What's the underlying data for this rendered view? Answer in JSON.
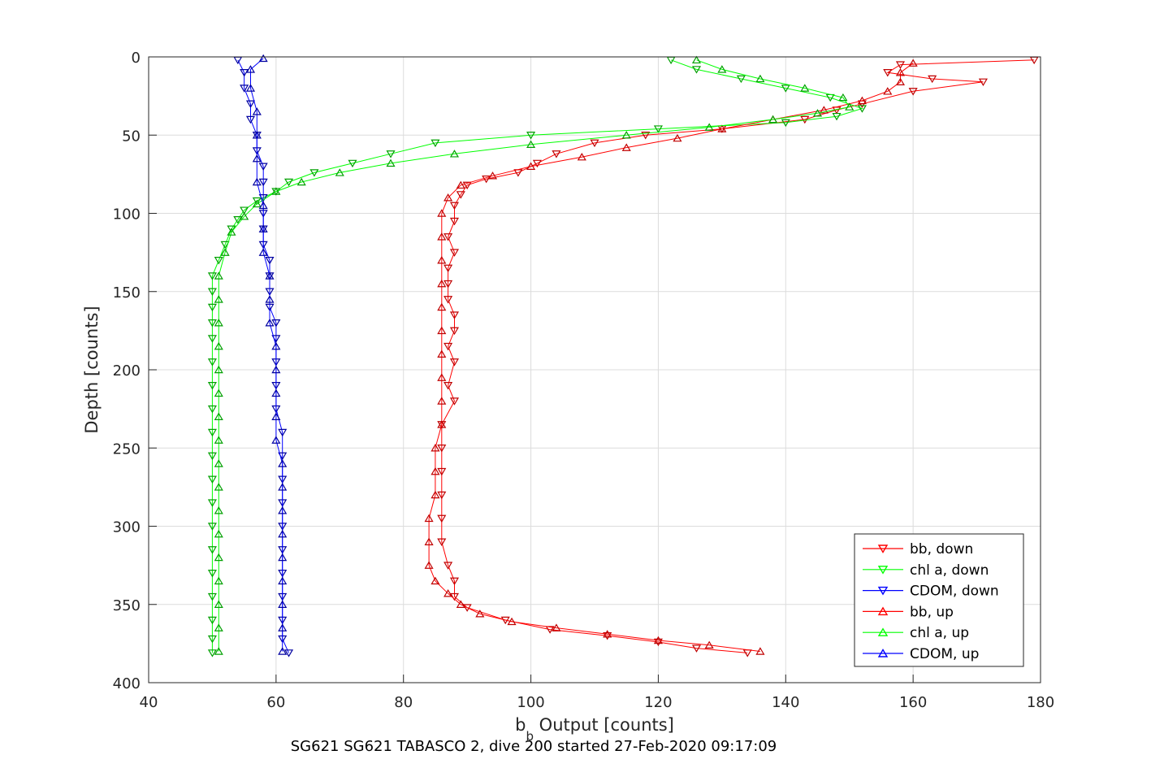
{
  "caption": "SG621 SG621 TABASCO 2, dive 200 started 27-Feb-2020 09:17:09",
  "chart_data": {
    "type": "line",
    "xlabel_main": "b",
    "xlabel_sub": "b",
    "xlabel_rest": " Output [counts]",
    "ylabel": "Depth [counts]",
    "xlim": [
      40,
      180
    ],
    "ylim": [
      0,
      400
    ],
    "y_reversed": true,
    "xticks": [
      "40",
      "60",
      "80",
      "100",
      "120",
      "140",
      "160",
      "180"
    ],
    "yticks": [
      "0",
      "50",
      "100",
      "150",
      "200",
      "250",
      "300",
      "350",
      "400"
    ],
    "grid": true,
    "legend_position": "bottom-right",
    "series": [
      {
        "name": "bb, down",
        "color": "#ff0000",
        "marker": "triangle-down",
        "points": [
          [
            179,
            2
          ],
          [
            158,
            5
          ],
          [
            156,
            10
          ],
          [
            163,
            14
          ],
          [
            171,
            16
          ],
          [
            160,
            22
          ],
          [
            152,
            30
          ],
          [
            148,
            34
          ],
          [
            143,
            40
          ],
          [
            130,
            46
          ],
          [
            118,
            50
          ],
          [
            110,
            55
          ],
          [
            104,
            62
          ],
          [
            101,
            68
          ],
          [
            98,
            74
          ],
          [
            93,
            78
          ],
          [
            90,
            82
          ],
          [
            89,
            88
          ],
          [
            88,
            95
          ],
          [
            88,
            105
          ],
          [
            87,
            115
          ],
          [
            88,
            125
          ],
          [
            87,
            135
          ],
          [
            87,
            145
          ],
          [
            87,
            155
          ],
          [
            88,
            165
          ],
          [
            88,
            175
          ],
          [
            87,
            185
          ],
          [
            88,
            195
          ],
          [
            87,
            210
          ],
          [
            88,
            220
          ],
          [
            86,
            235
          ],
          [
            86,
            250
          ],
          [
            86,
            265
          ],
          [
            86,
            280
          ],
          [
            86,
            295
          ],
          [
            86,
            310
          ],
          [
            87,
            325
          ],
          [
            88,
            335
          ],
          [
            88,
            345
          ],
          [
            90,
            352
          ],
          [
            96,
            360
          ],
          [
            103,
            366
          ],
          [
            112,
            370
          ],
          [
            120,
            374
          ],
          [
            126,
            378
          ],
          [
            134,
            381
          ]
        ]
      },
      {
        "name": "chl a, down",
        "color": "#00ff00",
        "marker": "triangle-down",
        "points": [
          [
            122,
            2
          ],
          [
            126,
            8
          ],
          [
            133,
            14
          ],
          [
            140,
            20
          ],
          [
            147,
            26
          ],
          [
            152,
            33
          ],
          [
            148,
            38
          ],
          [
            140,
            42
          ],
          [
            120,
            46
          ],
          [
            100,
            50
          ],
          [
            85,
            55
          ],
          [
            78,
            62
          ],
          [
            72,
            68
          ],
          [
            66,
            74
          ],
          [
            62,
            80
          ],
          [
            60,
            86
          ],
          [
            57,
            92
          ],
          [
            55,
            98
          ],
          [
            54,
            104
          ],
          [
            53,
            110
          ],
          [
            52,
            120
          ],
          [
            51,
            130
          ],
          [
            50,
            140
          ],
          [
            50,
            150
          ],
          [
            50,
            160
          ],
          [
            50,
            170
          ],
          [
            50,
            180
          ],
          [
            50,
            195
          ],
          [
            50,
            210
          ],
          [
            50,
            225
          ],
          [
            50,
            240
          ],
          [
            50,
            255
          ],
          [
            50,
            270
          ],
          [
            50,
            285
          ],
          [
            50,
            300
          ],
          [
            50,
            315
          ],
          [
            50,
            330
          ],
          [
            50,
            345
          ],
          [
            50,
            360
          ],
          [
            50,
            372
          ],
          [
            50,
            381
          ]
        ]
      },
      {
        "name": "CDOM, down",
        "color": "#0000ff",
        "marker": "triangle-down",
        "points": [
          [
            54,
            2
          ],
          [
            55,
            10
          ],
          [
            55,
            20
          ],
          [
            56,
            30
          ],
          [
            56,
            40
          ],
          [
            57,
            50
          ],
          [
            57,
            60
          ],
          [
            58,
            70
          ],
          [
            58,
            80
          ],
          [
            58,
            90
          ],
          [
            58,
            100
          ],
          [
            58,
            110
          ],
          [
            58,
            120
          ],
          [
            59,
            130
          ],
          [
            59,
            140
          ],
          [
            59,
            150
          ],
          [
            59,
            160
          ],
          [
            60,
            170
          ],
          [
            60,
            180
          ],
          [
            60,
            195
          ],
          [
            60,
            210
          ],
          [
            60,
            225
          ],
          [
            61,
            240
          ],
          [
            61,
            255
          ],
          [
            61,
            270
          ],
          [
            61,
            285
          ],
          [
            61,
            300
          ],
          [
            61,
            315
          ],
          [
            61,
            330
          ],
          [
            61,
            345
          ],
          [
            61,
            360
          ],
          [
            61,
            372
          ],
          [
            62,
            381
          ]
        ]
      },
      {
        "name": "bb, up",
        "color": "#ff0000",
        "marker": "triangle-up",
        "points": [
          [
            136,
            380
          ],
          [
            128,
            376
          ],
          [
            120,
            373
          ],
          [
            112,
            369
          ],
          [
            104,
            365
          ],
          [
            97,
            361
          ],
          [
            92,
            356
          ],
          [
            89,
            350
          ],
          [
            87,
            343
          ],
          [
            85,
            335
          ],
          [
            84,
            325
          ],
          [
            84,
            310
          ],
          [
            84,
            295
          ],
          [
            85,
            280
          ],
          [
            85,
            265
          ],
          [
            85,
            250
          ],
          [
            86,
            235
          ],
          [
            86,
            220
          ],
          [
            86,
            205
          ],
          [
            86,
            190
          ],
          [
            86,
            175
          ],
          [
            86,
            160
          ],
          [
            86,
            145
          ],
          [
            86,
            130
          ],
          [
            86,
            115
          ],
          [
            86,
            100
          ],
          [
            87,
            90
          ],
          [
            89,
            82
          ],
          [
            94,
            76
          ],
          [
            100,
            70
          ],
          [
            108,
            64
          ],
          [
            115,
            58
          ],
          [
            123,
            52
          ],
          [
            130,
            46
          ],
          [
            138,
            40
          ],
          [
            146,
            34
          ],
          [
            152,
            28
          ],
          [
            156,
            22
          ],
          [
            158,
            16
          ],
          [
            158,
            10
          ],
          [
            160,
            4
          ]
        ]
      },
      {
        "name": "chl a, up",
        "color": "#00ff00",
        "marker": "triangle-up",
        "points": [
          [
            51,
            380
          ],
          [
            51,
            365
          ],
          [
            51,
            350
          ],
          [
            51,
            335
          ],
          [
            51,
            320
          ],
          [
            51,
            305
          ],
          [
            51,
            290
          ],
          [
            51,
            275
          ],
          [
            51,
            260
          ],
          [
            51,
            245
          ],
          [
            51,
            230
          ],
          [
            51,
            215
          ],
          [
            51,
            200
          ],
          [
            51,
            185
          ],
          [
            51,
            170
          ],
          [
            51,
            155
          ],
          [
            51,
            140
          ],
          [
            52,
            125
          ],
          [
            53,
            112
          ],
          [
            55,
            102
          ],
          [
            57,
            94
          ],
          [
            60,
            86
          ],
          [
            64,
            80
          ],
          [
            70,
            74
          ],
          [
            78,
            68
          ],
          [
            88,
            62
          ],
          [
            100,
            56
          ],
          [
            115,
            50
          ],
          [
            128,
            45
          ],
          [
            138,
            40
          ],
          [
            145,
            36
          ],
          [
            150,
            32
          ],
          [
            149,
            26
          ],
          [
            143,
            20
          ],
          [
            136,
            14
          ],
          [
            130,
            8
          ],
          [
            126,
            2
          ]
        ]
      },
      {
        "name": "CDOM, up",
        "color": "#0000ff",
        "marker": "triangle-up",
        "points": [
          [
            61,
            380
          ],
          [
            61,
            365
          ],
          [
            61,
            350
          ],
          [
            61,
            335
          ],
          [
            61,
            320
          ],
          [
            61,
            305
          ],
          [
            61,
            290
          ],
          [
            61,
            275
          ],
          [
            61,
            260
          ],
          [
            60,
            245
          ],
          [
            60,
            230
          ],
          [
            60,
            215
          ],
          [
            60,
            200
          ],
          [
            60,
            185
          ],
          [
            59,
            170
          ],
          [
            59,
            155
          ],
          [
            59,
            140
          ],
          [
            58,
            125
          ],
          [
            58,
            110
          ],
          [
            58,
            95
          ],
          [
            57,
            80
          ],
          [
            57,
            65
          ],
          [
            57,
            50
          ],
          [
            57,
            35
          ],
          [
            56,
            20
          ],
          [
            56,
            8
          ],
          [
            58,
            1
          ]
        ]
      }
    ]
  }
}
